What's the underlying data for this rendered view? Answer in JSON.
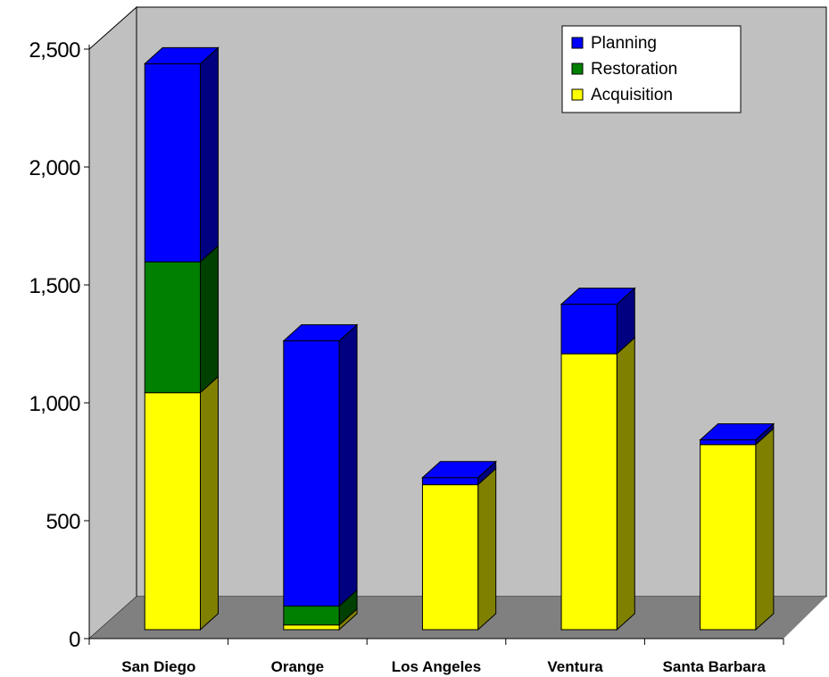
{
  "chart_data": {
    "type": "bar",
    "stacked": true,
    "three_d": true,
    "title": "",
    "xlabel": "",
    "ylabel": "",
    "categories": [
      "San Diego",
      "Orange",
      "Los Angeles",
      "Ventura",
      "Santa Barbara"
    ],
    "series": [
      {
        "name": "Acquisition",
        "values": [
          1005,
          20,
          615,
          1170,
          785
        ],
        "color": "#ffff00",
        "side": "#808000",
        "top": "#ffff00"
      },
      {
        "name": "Restoration",
        "values": [
          555,
          80,
          0,
          0,
          0
        ],
        "color": "#008000",
        "side": "#004000",
        "top": "#008000"
      },
      {
        "name": "Planning",
        "values": [
          840,
          1125,
          30,
          210,
          20
        ],
        "color": "#0000ff",
        "side": "#000080",
        "top": "#0000ff"
      }
    ],
    "legend_order": [
      "Planning",
      "Restoration",
      "Acquisition"
    ],
    "ylim": [
      0,
      2500
    ],
    "yticks": [
      0,
      500,
      1000,
      1500,
      2000,
      2500
    ],
    "ytick_labels": [
      "0",
      "500",
      "1,000",
      "1,500",
      "2,000",
      "2,500"
    ],
    "grid": false,
    "legend_position": "top-right",
    "colors": {
      "back_wall": "#c0c0c0",
      "floor": "#808080"
    }
  }
}
